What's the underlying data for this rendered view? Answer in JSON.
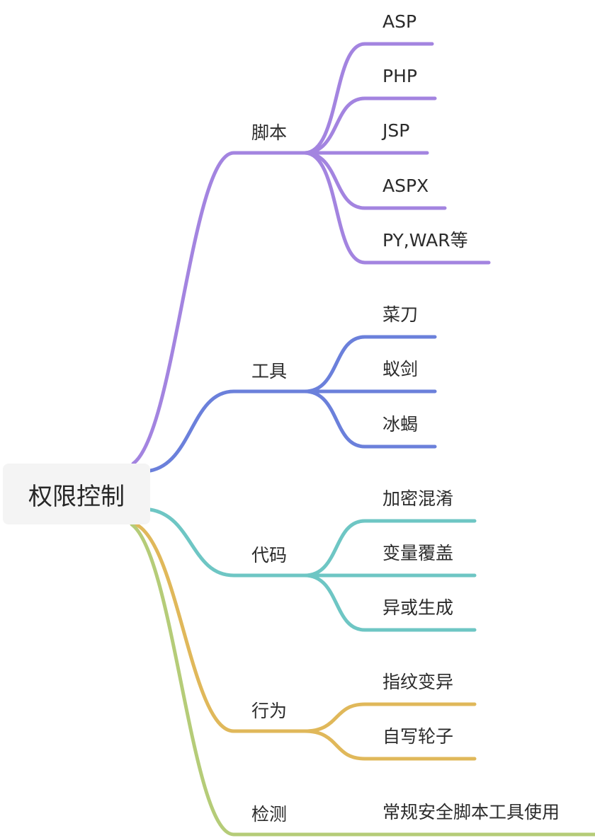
{
  "root": {
    "label": "权限控制"
  },
  "branches": [
    {
      "label": "脚本",
      "color": "#a384e0",
      "children": [
        "ASP",
        "PHP",
        "JSP",
        "ASPX",
        "PY,WAR等"
      ]
    },
    {
      "label": "工具",
      "color": "#6b80db",
      "children": [
        "菜刀",
        "蚁剑",
        "冰蝎"
      ]
    },
    {
      "label": "代码",
      "color": "#6ec6c4",
      "children": [
        "加密混淆",
        "变量覆盖",
        "异或生成"
      ]
    },
    {
      "label": "行为",
      "color": "#e0b85a",
      "children": [
        "指纹变异",
        "自写轮子"
      ]
    },
    {
      "label": "检测",
      "color": "#b5cc78",
      "children": [
        "常规安全脚本工具使用"
      ]
    }
  ]
}
